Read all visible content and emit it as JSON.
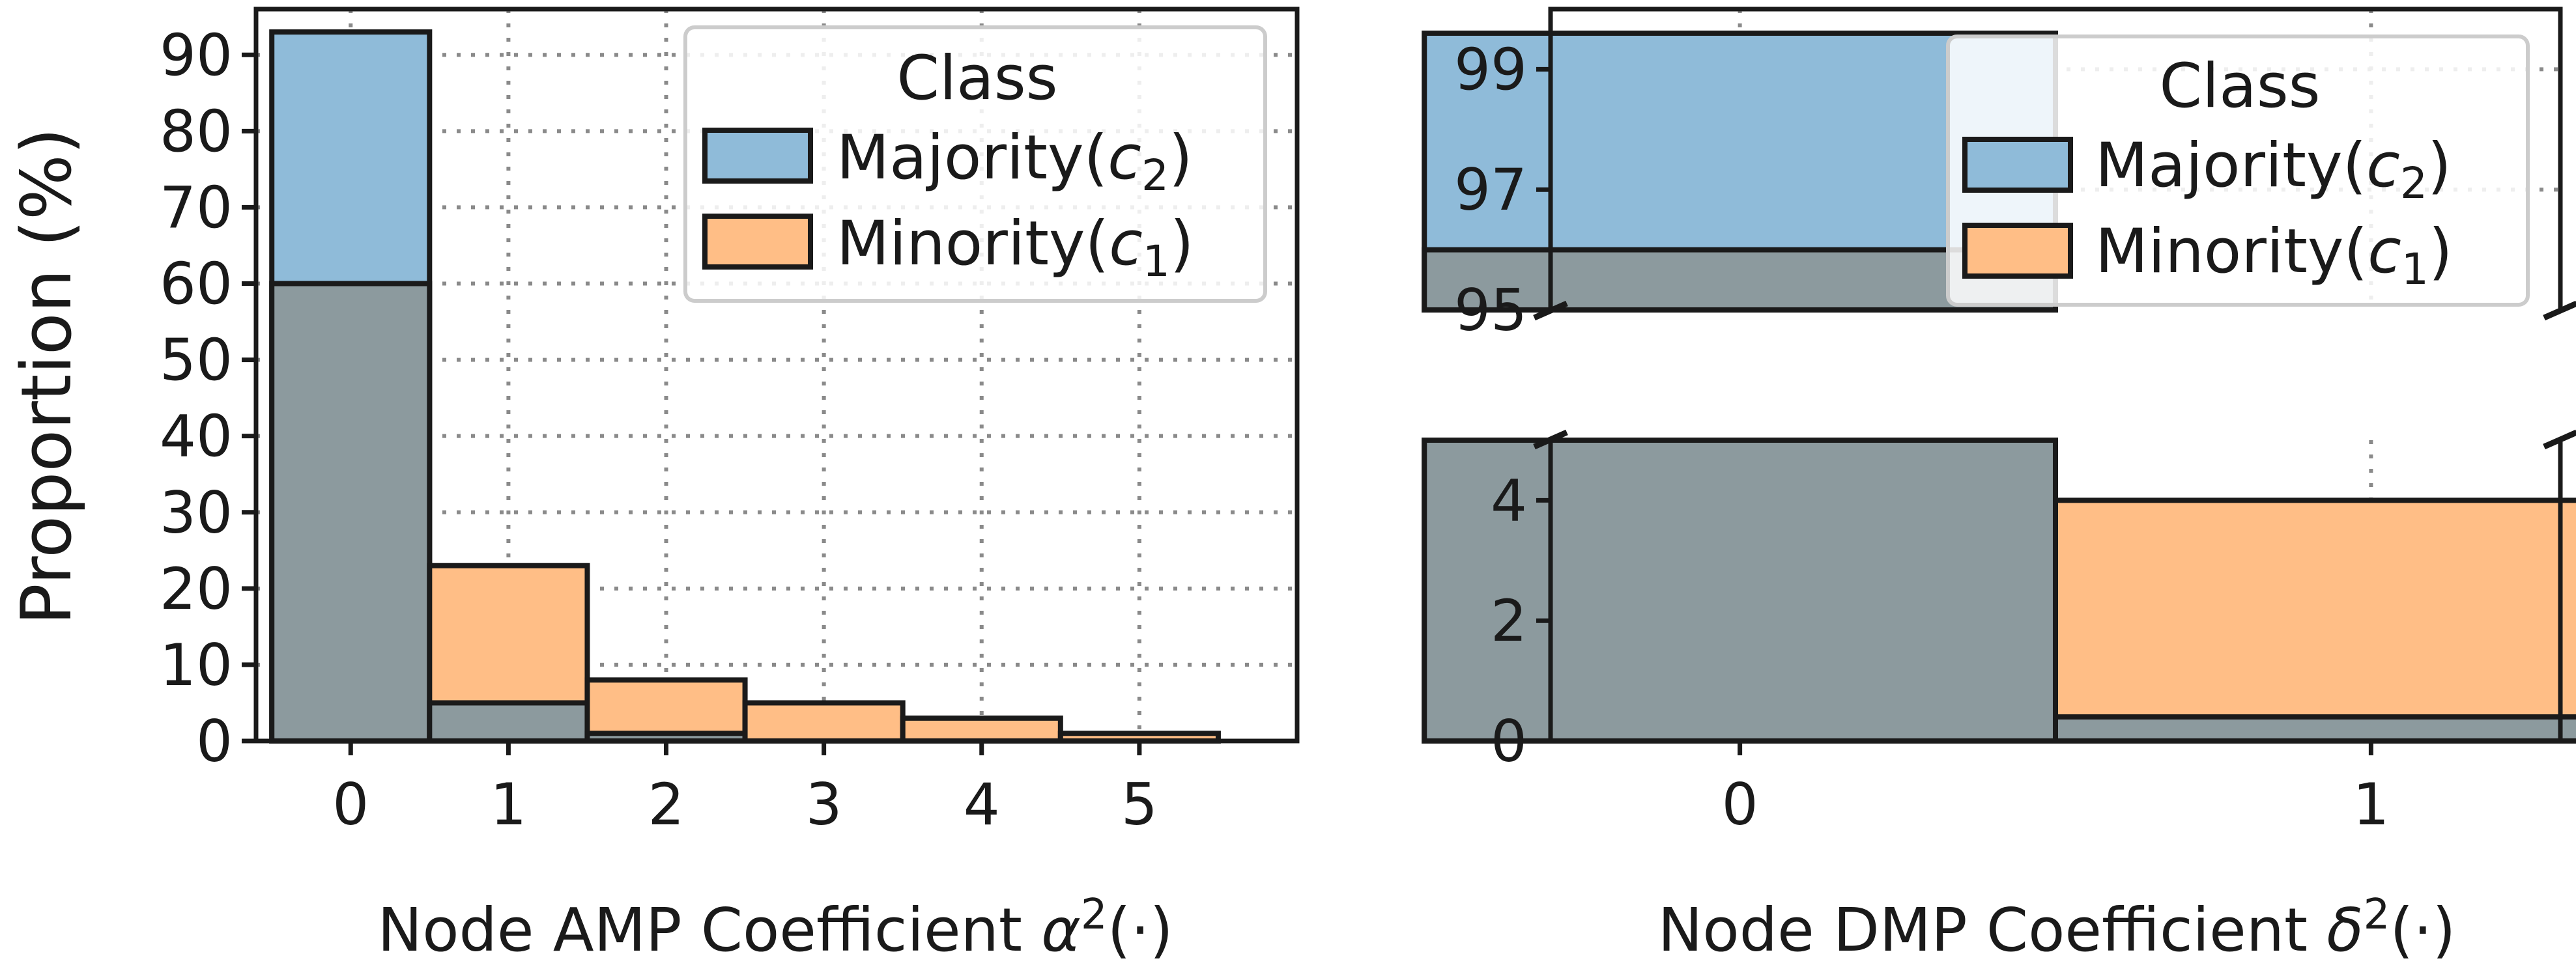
{
  "colors": {
    "majority": "#8fbbd9",
    "minority": "#ffbe86",
    "overlap": "#8c9a9e",
    "axis": "#1a1a1a",
    "grid": "#8a8a8a"
  },
  "chart_data": [
    {
      "type": "bar",
      "title": "",
      "xlabel": "Node AMP Coefficient α²(·)",
      "ylabel": "Proportion (%)",
      "categories": [
        "0",
        "1",
        "2",
        "3",
        "4",
        "5"
      ],
      "yticks": [
        "0",
        "10",
        "20",
        "30",
        "40",
        "50",
        "60",
        "70",
        "80",
        "90"
      ],
      "ylim": [
        0,
        96
      ],
      "grid": true,
      "bar_style": "overlapping histogram",
      "legend": {
        "title": "Class",
        "placement": "top-right",
        "entries": [
          {
            "key": "majority",
            "label_main": "Majority(",
            "label_var": "c",
            "label_sub": "2",
            "label_close": ")"
          },
          {
            "key": "minority",
            "label_main": "Minority(",
            "label_var": "c",
            "label_sub": "1",
            "label_close": ")"
          }
        ]
      },
      "series": [
        {
          "key": "majority",
          "values": [
            93,
            5,
            1,
            0,
            0,
            0
          ]
        },
        {
          "key": "minority",
          "values": [
            60,
            23,
            8,
            5,
            3,
            1
          ]
        }
      ]
    },
    {
      "type": "bar",
      "title": "",
      "xlabel": "Node DMP Coefficient δ²(·)",
      "ylabel": "",
      "categories": [
        "0",
        "1"
      ],
      "yticks_upper": [
        "95",
        "97",
        "99"
      ],
      "yticks_lower": [
        "0",
        "2",
        "4"
      ],
      "ylim_upper": [
        95,
        100
      ],
      "ylim_lower": [
        0,
        5
      ],
      "broken_axis": true,
      "grid": true,
      "bar_style": "overlapping histogram",
      "legend": {
        "title": "Class",
        "placement": "top-right",
        "entries": [
          {
            "key": "majority",
            "label_main": "Majority(",
            "label_var": "c",
            "label_sub": "2",
            "label_close": ")"
          },
          {
            "key": "minority",
            "label_main": "Minority(",
            "label_var": "c",
            "label_sub": "1",
            "label_close": ")"
          }
        ]
      },
      "series": [
        {
          "key": "majority",
          "values": [
            99.6,
            0.4
          ]
        },
        {
          "key": "minority",
          "values": [
            96.0,
            4.0
          ]
        }
      ]
    }
  ]
}
